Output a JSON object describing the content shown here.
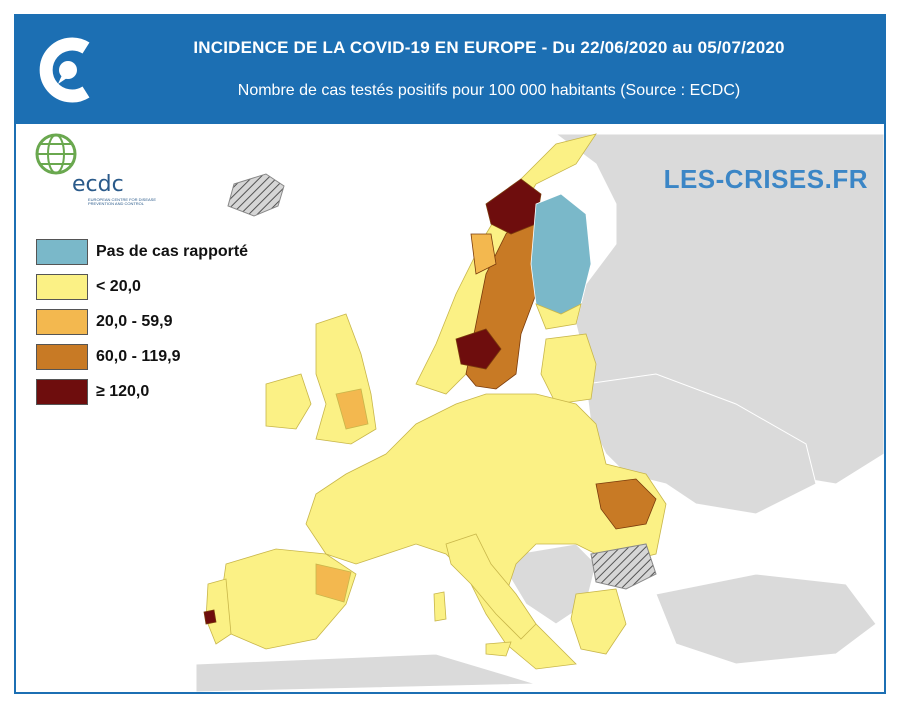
{
  "header": {
    "title": "INCIDENCE DE LA COVID-19 EN EUROPE - Du  22/06/2020  au  05/07/2020",
    "subtitle": "Nombre de cas testés positifs pour 100 000 habitants (Source : ECDC)"
  },
  "source_logo": {
    "name": "ecdc",
    "tagline": "EUROPEAN CENTRE FOR DISEASE PREVENTION AND CONTROL"
  },
  "watermark": {
    "text": "LES-CRISES.FR"
  },
  "legend": {
    "items": [
      {
        "label": "Pas de cas rapporté",
        "color": "#7ab8c9"
      },
      {
        "label": "< 20,0",
        "color": "#fbf185"
      },
      {
        "label": "20,0 - 59,9",
        "color": "#f3b84f"
      },
      {
        "label": "60,0 - 119,9",
        "color": "#c87a25"
      },
      {
        "label": "≥ 120,0",
        "color": "#6e0d0d"
      }
    ]
  },
  "colors": {
    "header": "#1c6fb3",
    "sea": "#ffffff",
    "non_eu_land": "#dadada",
    "no_data": "hatched-grey"
  },
  "map_regions": [
    {
      "name": "Northern Sweden",
      "class": "≥ 120,0"
    },
    {
      "name": "Southern Sweden",
      "class": "≥ 120,0"
    },
    {
      "name": "Central Sweden",
      "class": "60,0 - 119,9"
    },
    {
      "name": "Finland",
      "class": "Pas de cas rapporté"
    },
    {
      "name": "Norway",
      "class": "< 20,0"
    },
    {
      "name": "Portugal (Lisbon)",
      "class": "≥ 120,0"
    },
    {
      "name": "Romania",
      "class": "60,0 - 119,9"
    },
    {
      "name": "Bulgaria",
      "class": "no data"
    },
    {
      "name": "Iceland",
      "class": "no data"
    }
  ]
}
